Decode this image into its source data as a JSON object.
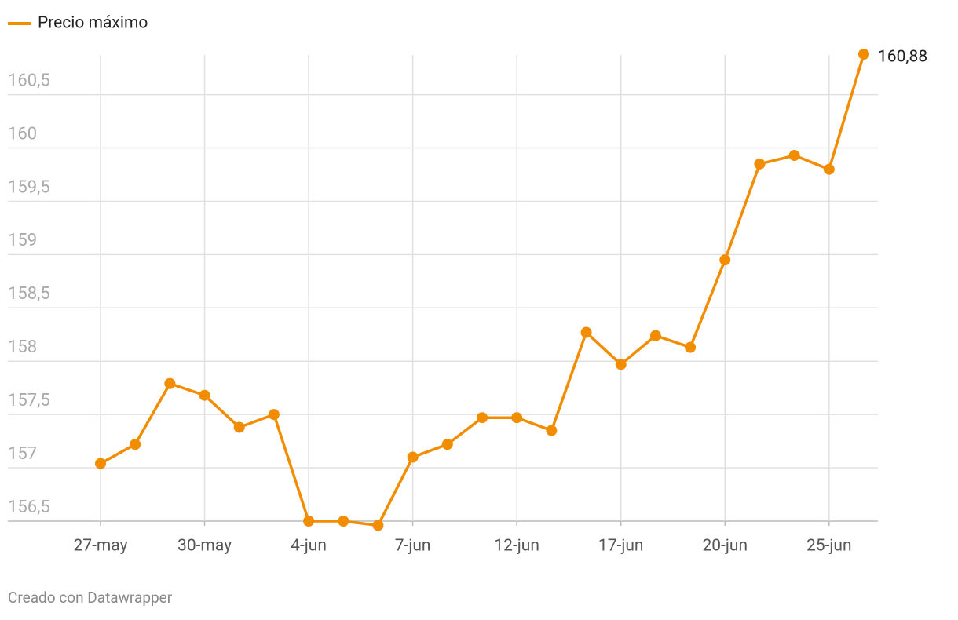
{
  "chart_data": {
    "type": "line",
    "legend": "top-left",
    "series": [
      {
        "name": "Precio máximo",
        "color": "#f28c00",
        "values": [
          157.04,
          157.22,
          157.79,
          157.68,
          157.38,
          157.5,
          156.5,
          156.5,
          156.46,
          157.1,
          157.22,
          157.47,
          157.47,
          157.35,
          158.27,
          157.97,
          158.24,
          158.13,
          158.95,
          159.85,
          159.93,
          159.8,
          160.88
        ],
        "value_labels": [
          null,
          null,
          null,
          null,
          null,
          null,
          null,
          null,
          null,
          null,
          null,
          null,
          null,
          null,
          null,
          null,
          null,
          null,
          null,
          null,
          null,
          null,
          "160,88"
        ]
      }
    ],
    "categories": [
      "27-may",
      null,
      null,
      "30-may",
      null,
      null,
      "4-jun",
      null,
      null,
      "7-jun",
      null,
      null,
      "12-jun",
      null,
      null,
      "17-jun",
      null,
      null,
      "20-jun",
      null,
      null,
      "25-jun",
      null
    ],
    "ylim": [
      156.5,
      160.88
    ],
    "yticks": [
      {
        "value": 156.5,
        "label": "156,5"
      },
      157,
      {
        "value": 157.5,
        "label": "157,5"
      },
      158,
      {
        "value": 158.5,
        "label": "158,5"
      },
      159,
      {
        "value": 159.5,
        "label": "159,5"
      },
      160,
      {
        "value": 160.5,
        "label": "160,5"
      }
    ],
    "grid": true,
    "credit": "Creado con Datawrapper"
  }
}
